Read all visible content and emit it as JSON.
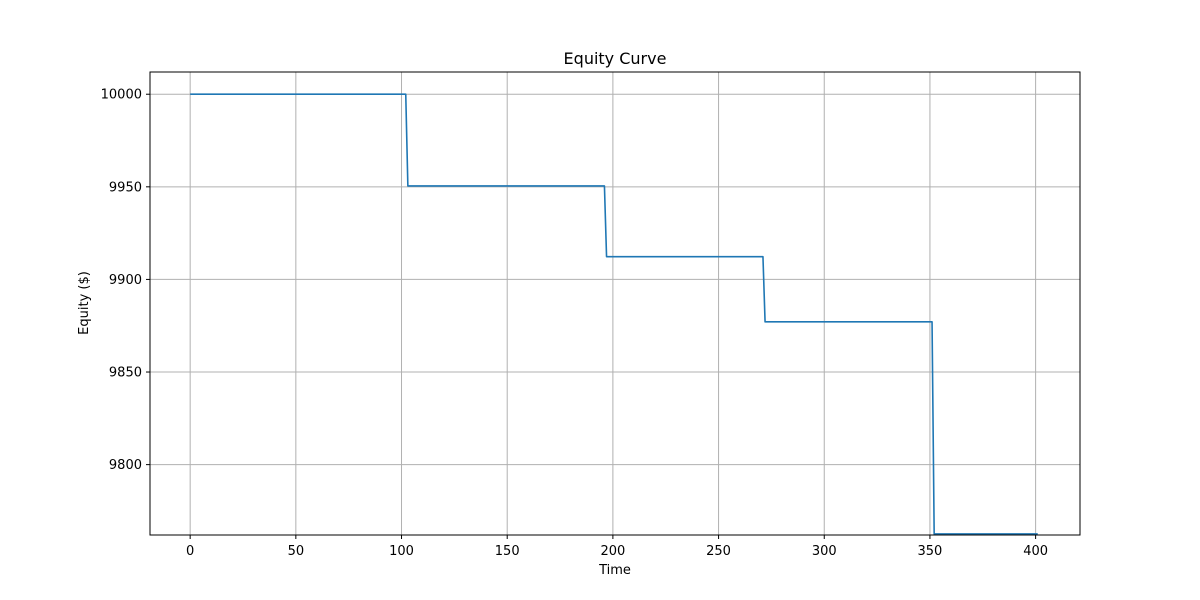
{
  "chart_data": {
    "type": "line",
    "title": "Equity Curve",
    "xlabel": "Time",
    "ylabel": "Equity ($)",
    "xlim": [
      -19,
      421
    ],
    "ylim": [
      9762,
      10012
    ],
    "x_ticks": [
      0,
      50,
      100,
      150,
      200,
      250,
      300,
      350,
      400
    ],
    "y_ticks": [
      9800,
      9850,
      9900,
      9950,
      10000
    ],
    "grid": true,
    "line_color": "#1f77b4",
    "grid_color": "#b0b0b0",
    "series": [
      {
        "x": [
          0,
          102,
          103,
          196,
          197,
          271,
          272,
          351,
          352,
          401
        ],
        "values": [
          10000,
          10000,
          9950.5,
          9950.5,
          9912.3,
          9912.3,
          9877.1,
          9877.1,
          9762.6,
          9762.6
        ]
      }
    ]
  }
}
